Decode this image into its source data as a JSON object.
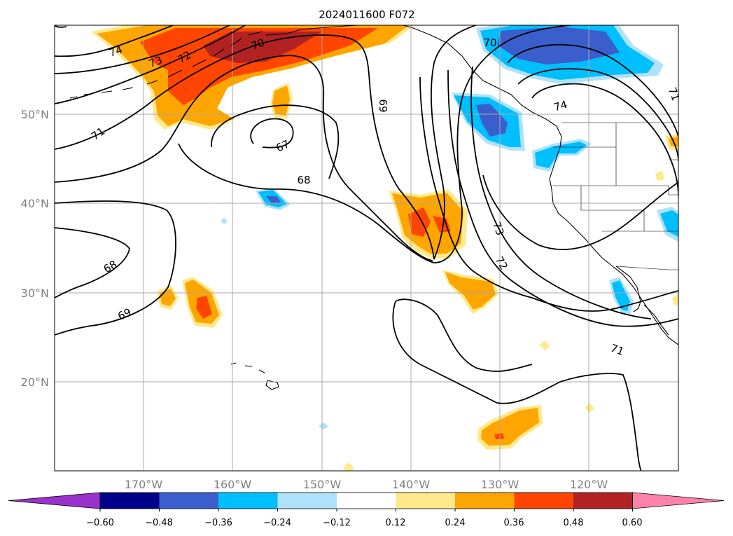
{
  "title": "2024011600 F072",
  "lat_labels": [
    "50°N",
    "40°N",
    "30°N",
    "20°N"
  ],
  "lon_labels": [
    "170°W",
    "160°W",
    "150°W",
    "140°W",
    "130°W",
    "120°W"
  ],
  "colorbar": {
    "ticks": [
      "−0.60",
      "−0.48",
      "−0.36",
      "−0.24",
      "−0.12",
      "0.12",
      "0.24",
      "0.36",
      "0.48",
      "0.60"
    ],
    "colors": [
      "#9932cc",
      "#00008b",
      "#3a5fcd",
      "#00bfff",
      "#aee2fa",
      "#ffffff",
      "#ffe98a",
      "#ffa500",
      "#ff4500",
      "#b22222",
      "#ff82ab"
    ]
  },
  "contour_labels": [
    "74",
    "73",
    "72",
    "70",
    "71",
    "69",
    "67",
    "68",
    "68",
    "69",
    "70",
    "74",
    "71",
    "73",
    "72",
    "71"
  ],
  "colors": {
    "grid": "#a9a9a9",
    "contour": "#000000",
    "frame": "#000000"
  }
}
